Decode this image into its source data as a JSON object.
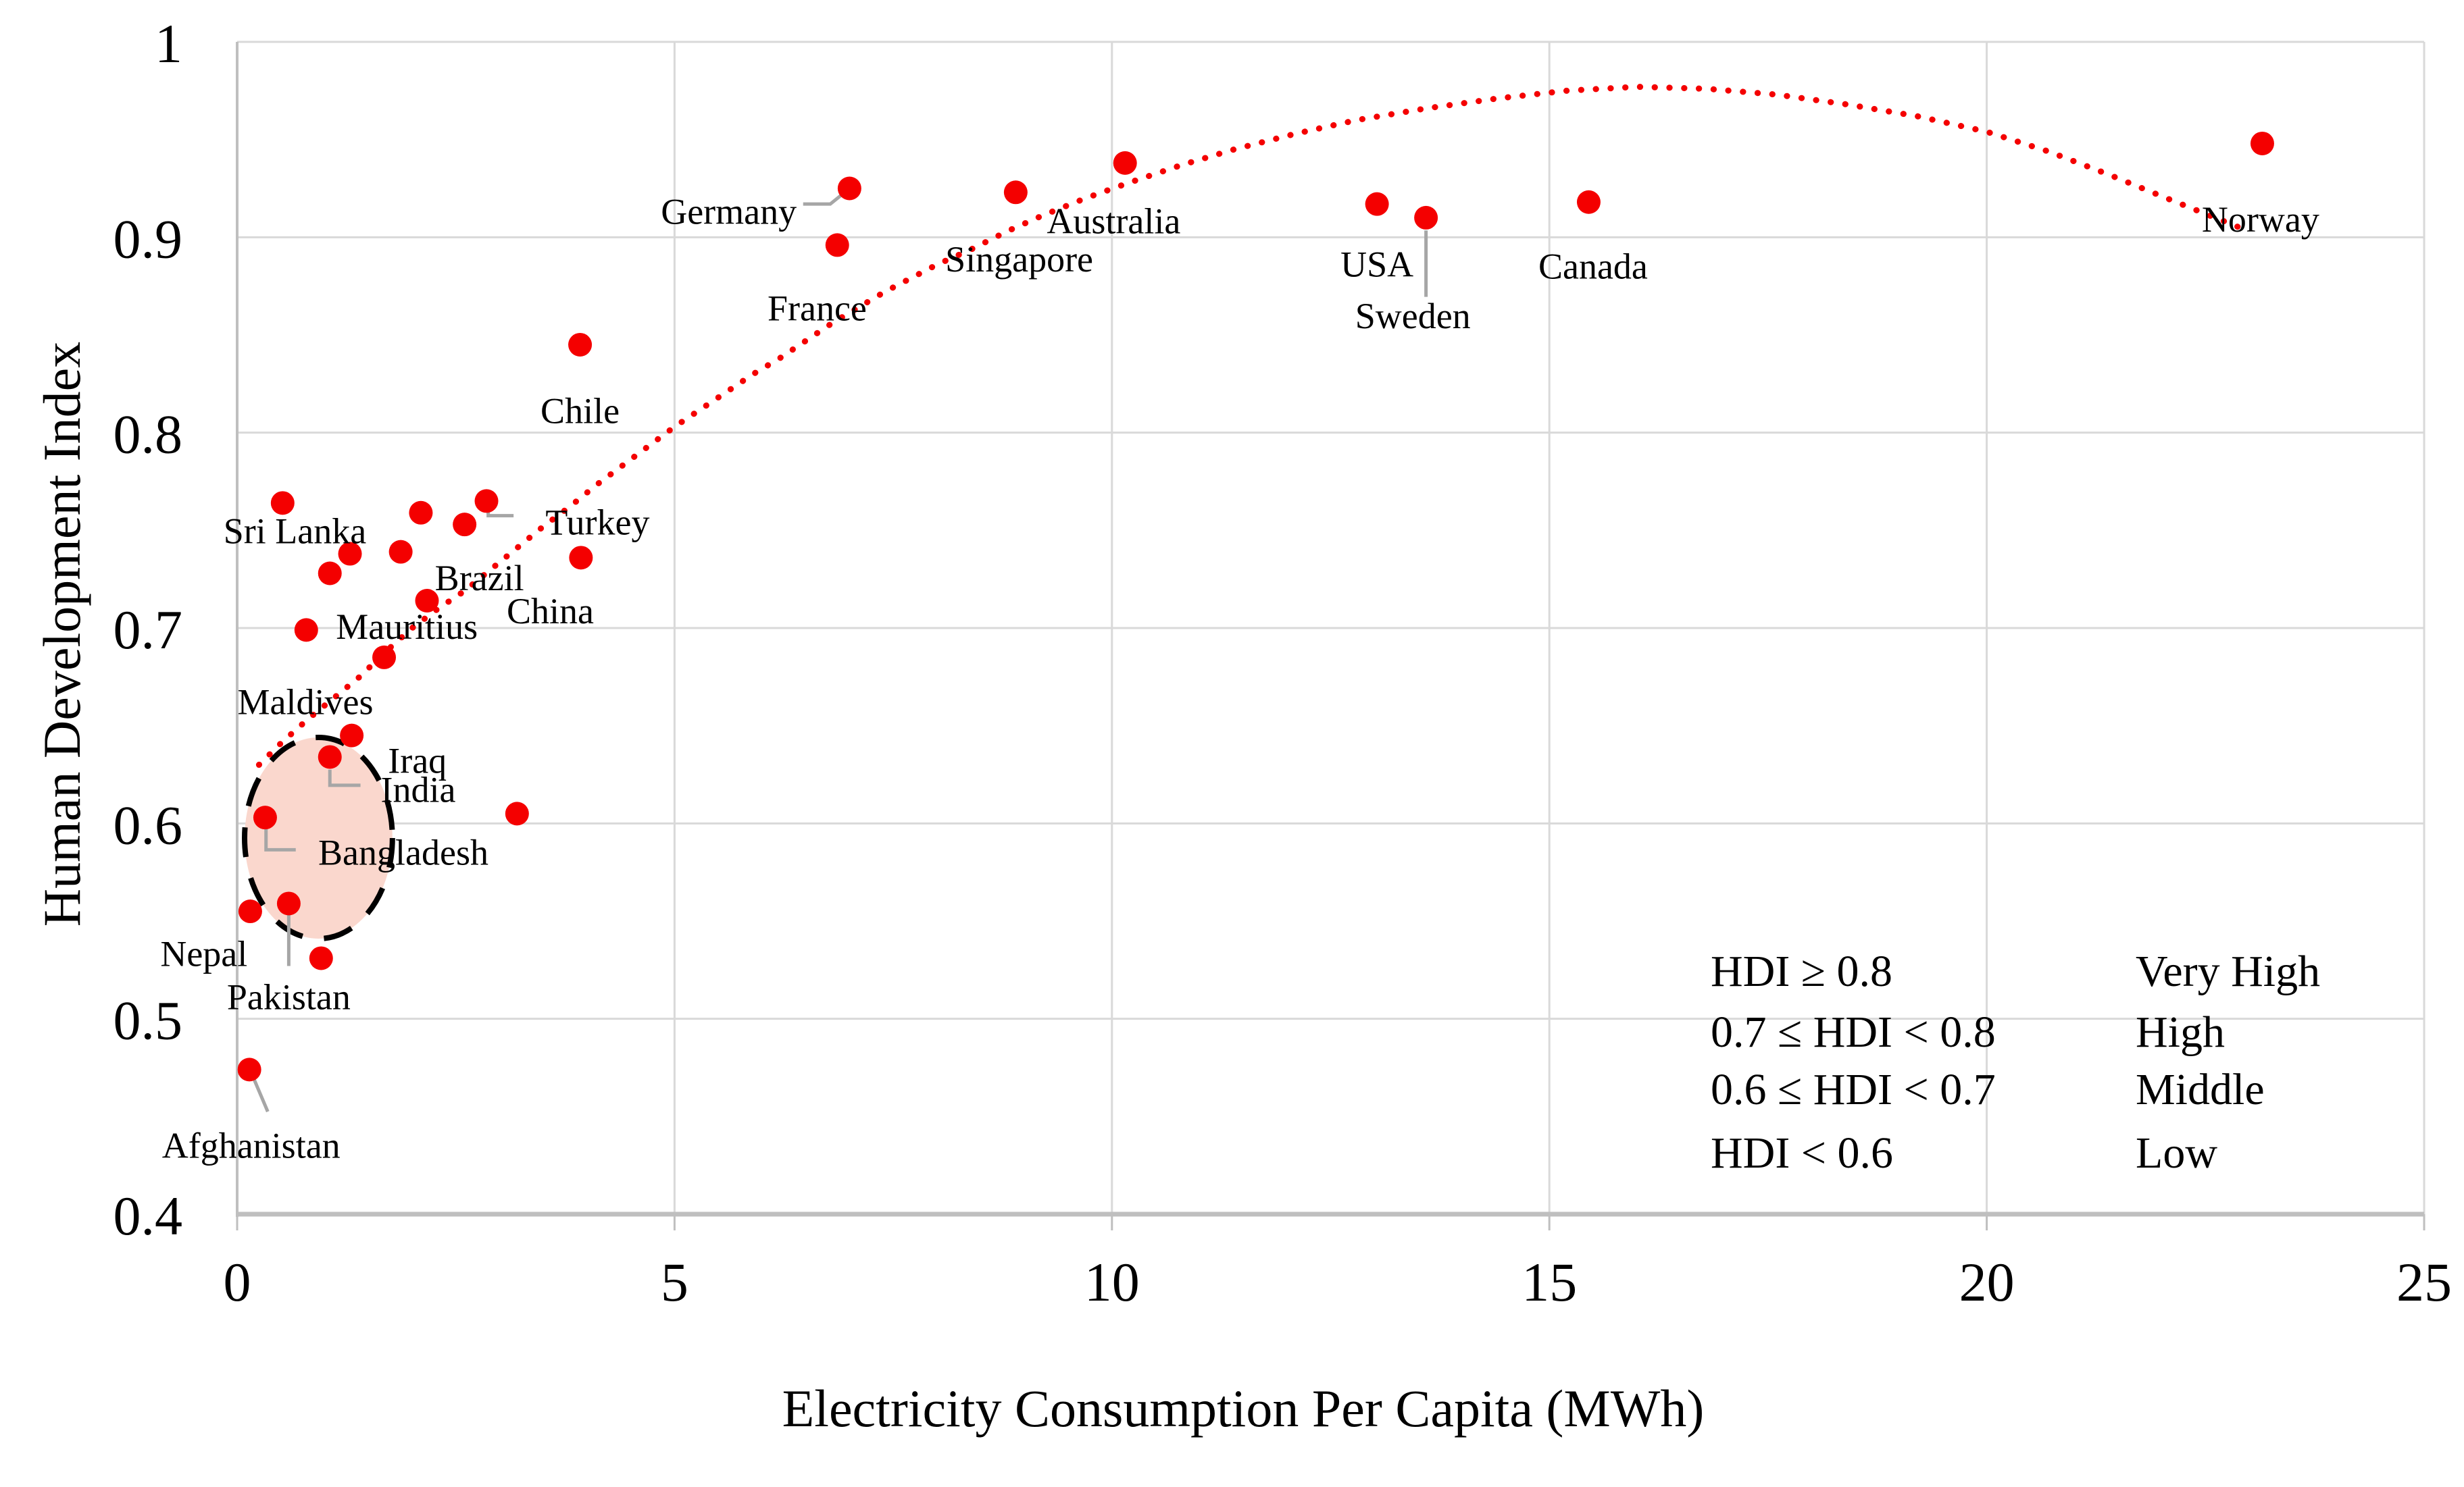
{
  "chart_data": {
    "type": "scatter",
    "title": "",
    "xlabel": "Electricity Consumption Per Capita (MWh)",
    "ylabel": "Human Development Index",
    "xlim": [
      0,
      25
    ],
    "ylim": [
      0.4,
      1.0
    ],
    "grid": true,
    "x_ticks": [
      0,
      5,
      10,
      15,
      20,
      25
    ],
    "x_tick_labels": [
      "0",
      "5",
      "10",
      "15",
      "20",
      "25"
    ],
    "y_ticks": [
      1,
      0.9,
      0.8,
      0.7,
      0.6,
      0.5,
      0.4
    ],
    "y_tick_labels": [
      "1",
      "0.9",
      "0.8",
      "0.7",
      "0.6",
      "0.5",
      "0.4"
    ],
    "colors": {
      "point": "#f40000",
      "trend": "#f40000",
      "grid": "#d9d9d9",
      "axis_line": "#bfbfbf",
      "leader": "#a6a6a6",
      "ellipse_fill": "#fad7cd",
      "ellipse_stroke": "#000000",
      "text": "#000000"
    },
    "countries": [
      {
        "label": "Sri Lanka",
        "x": 0.52,
        "y": 0.764,
        "label_x": 0.66,
        "label_y": 0.75
      },
      {
        "label": "Turkey",
        "x": 2.85,
        "y": 0.765,
        "label_x": 4.12,
        "label_y": 0.7545,
        "leader": [
          [
            2.87,
            0.7615
          ],
          [
            2.87,
            0.7575
          ],
          [
            3.16,
            0.7575
          ]
        ]
      },
      {
        "label": "Brazil",
        "x": 2.6,
        "y": 0.753,
        "label_x": 2.77,
        "label_y": 0.726
      },
      {
        "label": "China",
        "x": 3.93,
        "y": 0.736,
        "label_x": 3.58,
        "label_y": 0.709
      },
      {
        "label": "Mauritius",
        "x": 0.79,
        "y": 0.699,
        "label_x": 1.94,
        "label_y": 0.701
      },
      {
        "label": "Maldives",
        "x": 1.68,
        "y": 0.685,
        "label_x": 0.78,
        "label_y": 0.6625
      },
      {
        "label": "Iraq",
        "x": 1.31,
        "y": 0.645,
        "label_x": 2.06,
        "label_y": 0.6325
      },
      {
        "label": "India",
        "x": 1.06,
        "y": 0.634,
        "label_x": 2.07,
        "label_y": 0.6175,
        "leader": [
          [
            1.06,
            0.6275
          ],
          [
            1.06,
            0.6195
          ],
          [
            1.41,
            0.6195
          ]
        ]
      },
      {
        "label": "Bangladesh",
        "x": 0.32,
        "y": 0.603,
        "label_x": 1.9,
        "label_y": 0.5855,
        "leader": [
          [
            0.33,
            0.597
          ],
          [
            0.33,
            0.5865
          ],
          [
            0.67,
            0.5865
          ]
        ]
      },
      {
        "label": "Nepal",
        "x": 0.15,
        "y": 0.555,
        "label_x": -0.38,
        "label_y": 0.5335
      },
      {
        "label": "Pakistan",
        "x": 0.59,
        "y": 0.559,
        "label_x": 0.59,
        "label_y": 0.5115,
        "leader": [
          [
            0.59,
            0.5535
          ],
          [
            0.59,
            0.527
          ]
        ]
      },
      {
        "label": "Afghanistan",
        "x": 0.14,
        "y": 0.474,
        "label_x": 0.16,
        "label_y": 0.4355,
        "leader": [
          [
            0.17,
            0.4715
          ],
          [
            0.35,
            0.4525
          ]
        ]
      },
      {
        "label": "Chile",
        "x": 3.92,
        "y": 0.845,
        "label_x": 3.92,
        "label_y": 0.8115
      },
      {
        "label": "Germany",
        "x": 7.0,
        "y": 0.925,
        "label_x": 5.62,
        "label_y": 0.9135,
        "leader": [
          [
            6.47,
            0.917
          ],
          [
            6.78,
            0.917
          ],
          [
            6.96,
            0.9235
          ]
        ]
      },
      {
        "label": "France",
        "x": 6.86,
        "y": 0.896,
        "label_x": 6.63,
        "label_y": 0.864
      },
      {
        "label": "Singapore",
        "x": 8.9,
        "y": 0.923,
        "label_x": 8.94,
        "label_y": 0.889
      },
      {
        "label": "Australia",
        "x": 10.15,
        "y": 0.938,
        "label_x": 10.02,
        "label_y": 0.9085
      },
      {
        "label": "USA",
        "x": 13.03,
        "y": 0.917,
        "label_x": 13.03,
        "label_y": 0.8865
      },
      {
        "label": "Sweden",
        "x": 13.59,
        "y": 0.91,
        "label_x": 13.44,
        "label_y": 0.86,
        "leader": [
          [
            13.59,
            0.9035
          ],
          [
            13.59,
            0.8695
          ]
        ]
      },
      {
        "label": "Canada",
        "x": 15.45,
        "y": 0.918,
        "label_x": 15.5,
        "label_y": 0.8855
      },
      {
        "label": "Norway",
        "x": 23.15,
        "y": 0.948,
        "label_x": 23.13,
        "label_y": 0.9095
      }
    ],
    "unlabeled_points": [
      [
        1.06,
        0.728
      ],
      [
        1.29,
        0.738
      ],
      [
        1.87,
        0.739
      ],
      [
        2.1,
        0.759
      ],
      [
        2.17,
        0.714
      ],
      [
        3.2,
        0.605
      ],
      [
        0.96,
        0.531
      ]
    ],
    "trendline": {
      "style": "dotted",
      "points": [
        [
          0.25,
          0.63
        ],
        [
          0.5,
          0.641
        ],
        [
          0.8,
          0.653
        ],
        [
          1.1,
          0.664
        ],
        [
          1.4,
          0.675
        ],
        [
          1.7,
          0.688
        ],
        [
          2.0,
          0.7
        ],
        [
          2.3,
          0.71
        ],
        [
          2.6,
          0.719
        ],
        [
          2.9,
          0.73
        ],
        [
          3.2,
          0.741
        ],
        [
          3.5,
          0.752
        ],
        [
          3.8,
          0.762
        ],
        [
          4.1,
          0.773
        ],
        [
          4.4,
          0.783
        ],
        [
          4.7,
          0.793
        ],
        [
          5.0,
          0.803
        ],
        [
          5.3,
          0.812
        ],
        [
          5.6,
          0.821
        ],
        [
          5.9,
          0.83
        ],
        [
          6.2,
          0.838
        ],
        [
          6.5,
          0.847
        ],
        [
          6.8,
          0.856
        ],
        [
          7.1,
          0.864
        ],
        [
          7.4,
          0.872
        ],
        [
          7.7,
          0.879
        ],
        [
          8.0,
          0.886
        ],
        [
          8.4,
          0.894
        ],
        [
          8.8,
          0.903
        ],
        [
          9.2,
          0.911
        ],
        [
          9.7,
          0.92
        ],
        [
          10.2,
          0.928
        ],
        [
          10.8,
          0.937
        ],
        [
          11.4,
          0.945
        ],
        [
          12.1,
          0.953
        ],
        [
          12.8,
          0.96
        ],
        [
          13.6,
          0.966
        ],
        [
          14.4,
          0.971
        ],
        [
          15.2,
          0.975
        ],
        [
          16.0,
          0.977
        ],
        [
          16.8,
          0.976
        ],
        [
          17.6,
          0.973
        ],
        [
          18.4,
          0.968
        ],
        [
          19.2,
          0.962
        ],
        [
          20.0,
          0.954
        ],
        [
          20.7,
          0.944
        ],
        [
          21.4,
          0.932
        ],
        [
          22.0,
          0.921
        ],
        [
          22.5,
          0.912
        ],
        [
          23.0,
          0.903
        ]
      ]
    },
    "highlight_ellipse": {
      "cx": 0.93,
      "cy": 0.5925,
      "rx": 0.845,
      "ry": 0.0515
    },
    "legend": {
      "position": "inside-bottom-right",
      "rows": [
        {
          "range": "HDI ≥ 0.8",
          "level": "Very High"
        },
        {
          "range": "0.7 ≤ HDI < 0.8",
          "level": "High"
        },
        {
          "range": "0.6 ≤ HDI < 0.7",
          "level": "Middle"
        },
        {
          "range": "HDI < 0.6",
          "level": "Low"
        }
      ]
    }
  }
}
